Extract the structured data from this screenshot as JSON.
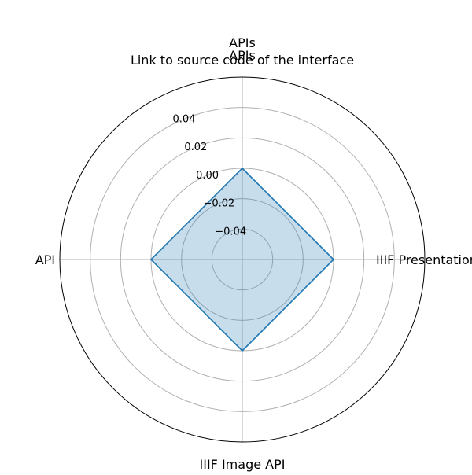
{
  "chart_data": {
    "type": "radar",
    "title": "APIs\nLink to source code of the interface",
    "categories": [
      "IIIF Presentation",
      "APIs",
      "API",
      "IIIF Image API"
    ],
    "series": [
      {
        "values": [
          0,
          0,
          0,
          0
        ],
        "color": "#1f77b4",
        "fill_color": "#1f77b4",
        "fill_opacity": 0.25
      }
    ],
    "rlim": [
      -0.06,
      0.06
    ],
    "r_ticks": [
      -0.04,
      -0.02,
      0.0,
      0.02,
      0.04
    ],
    "r_tick_labels": [
      "−0.04",
      "−0.02",
      "0.00",
      "0.02",
      "0.04"
    ],
    "grid": true,
    "grid_color": "#b0b0b0",
    "axis_color": "#000000"
  }
}
